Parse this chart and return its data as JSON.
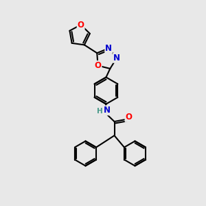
{
  "bg_color": "#e8e8e8",
  "bond_color": "#000000",
  "bond_width": 1.5,
  "atom_colors": {
    "O": "#ff0000",
    "N": "#0000cd",
    "C": "#000000",
    "H": "#4a9a8a"
  },
  "font_size_atoms": 8.5,
  "font_size_h": 7.5,
  "figsize": [
    3.0,
    3.0
  ],
  "dpi": 100
}
